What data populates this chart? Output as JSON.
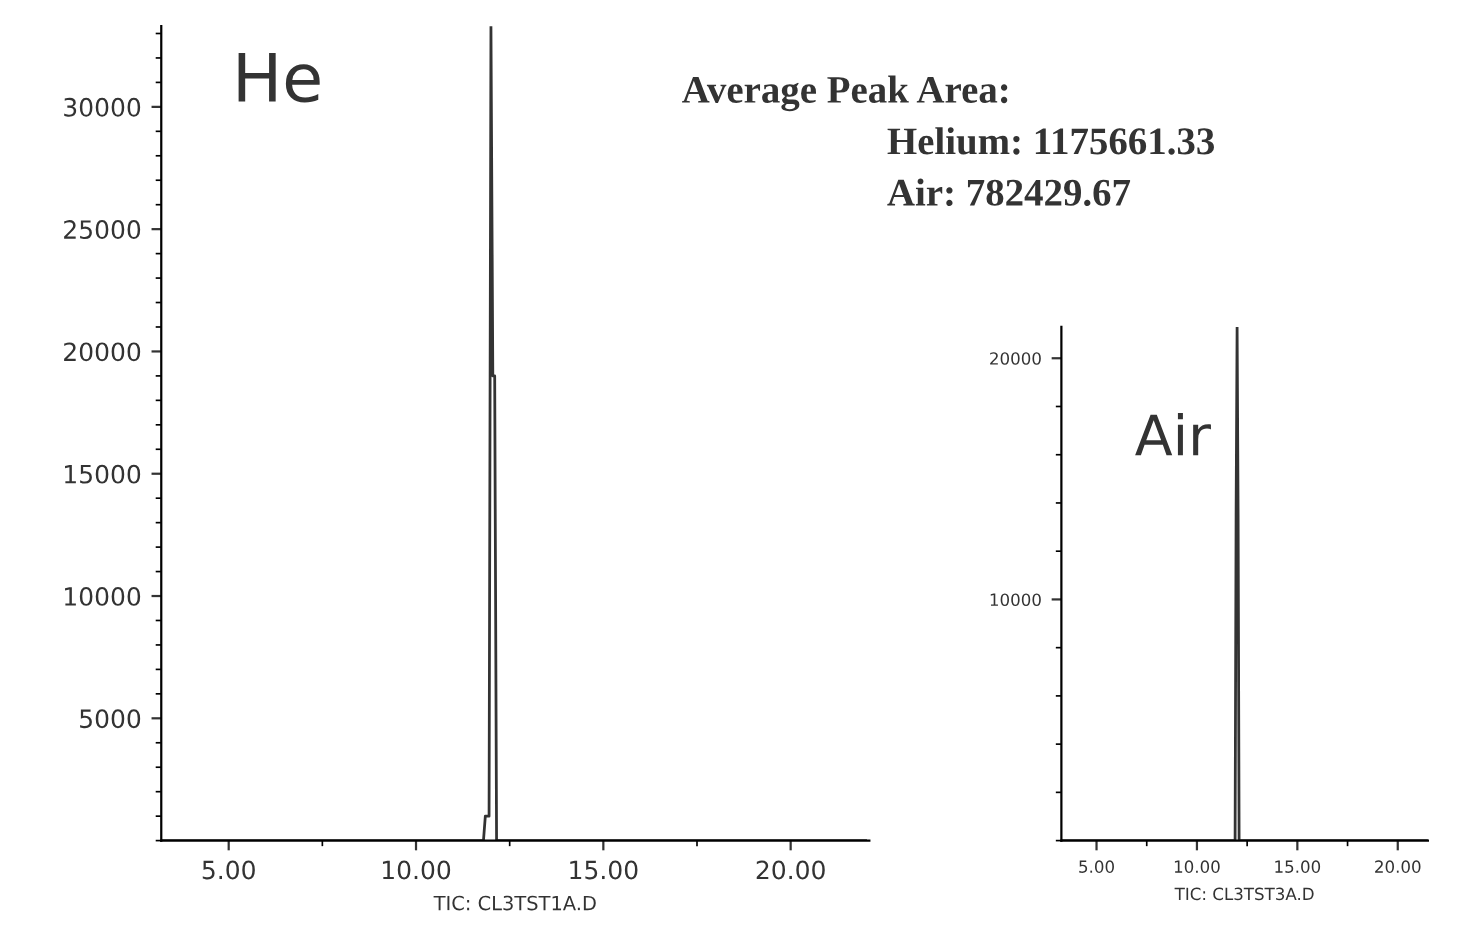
{
  "chart_data": [
    {
      "type": "line",
      "xlabel": "TIC: CL3TST1A.D",
      "annotations": [
        "He",
        "Average Peak Area:",
        "Helium: 1175661.33",
        "Air: 782429.67"
      ],
      "x": [
        3.2,
        11.8,
        11.85,
        11.95,
        12.0,
        12.05,
        12.1,
        12.15,
        22.0
      ],
      "series": [
        {
          "color": "#333333",
          "values": [
            0,
            0,
            1000,
            1000,
            33300,
            19000,
            19000,
            0,
            0
          ]
        }
      ],
      "xlim": [
        3.2,
        22.1
      ],
      "ylim": [
        0,
        33300
      ],
      "xticks": [
        {
          "value": 5,
          "label": "5.00"
        },
        {
          "value": 10,
          "label": "10.00"
        },
        {
          "value": 15,
          "label": "15.00"
        },
        {
          "value": 20,
          "label": "20.00"
        }
      ],
      "yticks": [
        5000,
        10000,
        15000,
        20000,
        25000,
        30000
      ],
      "grid": false
    },
    {
      "type": "line",
      "xlabel": "TIC: CL3TST3A.D",
      "annotations": [
        "Air"
      ],
      "x": [
        3.25,
        11.9,
        11.95,
        12.0,
        12.05,
        12.1,
        21.5
      ],
      "series": [
        {
          "color": "#333333",
          "values": [
            0,
            0,
            13500,
            21300,
            13500,
            0,
            0
          ]
        }
      ],
      "xlim": [
        3.25,
        21.5
      ],
      "ylim": [
        0,
        21300
      ],
      "xticks": [
        {
          "value": 5,
          "label": "5.00"
        },
        {
          "value": 10,
          "label": "10.00"
        },
        {
          "value": 15,
          "label": "15.00"
        },
        {
          "value": 20,
          "label": "20.00"
        }
      ],
      "yticks": [
        10000,
        20000
      ],
      "grid": false
    }
  ]
}
